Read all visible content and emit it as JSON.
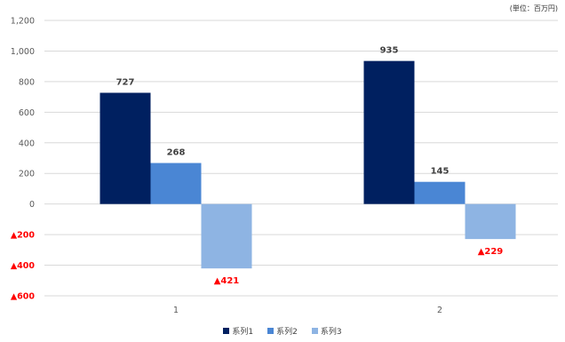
{
  "unit_note": "(単位：百万円)",
  "colors": {
    "series1": "#002060",
    "series2": "#4a86d4",
    "series3": "#8eb4e3",
    "negative_label": "#ff0000",
    "grid": "#d9d9d9",
    "tick": "#595959",
    "data_label": "#404040"
  },
  "chart_data": {
    "type": "bar",
    "categories": [
      "1",
      "2"
    ],
    "series": [
      {
        "name": "系列1",
        "values": [
          727,
          935
        ],
        "labels": [
          "727",
          "935"
        ]
      },
      {
        "name": "系列2",
        "values": [
          268,
          145
        ],
        "labels": [
          "268",
          "145"
        ]
      },
      {
        "name": "系列3",
        "values": [
          -421,
          -229
        ],
        "labels": [
          "▲421",
          "▲229"
        ]
      }
    ],
    "ylim": [
      -600,
      1200
    ],
    "yticks": [
      {
        "value": 1200,
        "label": "1,200"
      },
      {
        "value": 1000,
        "label": "1,000"
      },
      {
        "value": 800,
        "label": "800"
      },
      {
        "value": 600,
        "label": "600"
      },
      {
        "value": 400,
        "label": "400"
      },
      {
        "value": 200,
        "label": "200"
      },
      {
        "value": 0,
        "label": "0"
      },
      {
        "value": -200,
        "label": "▲200"
      },
      {
        "value": -400,
        "label": "▲400"
      },
      {
        "value": -600,
        "label": "▲600"
      }
    ],
    "grid": true,
    "legend_position": "bottom",
    "title": "",
    "xlabel": "",
    "ylabel": ""
  }
}
